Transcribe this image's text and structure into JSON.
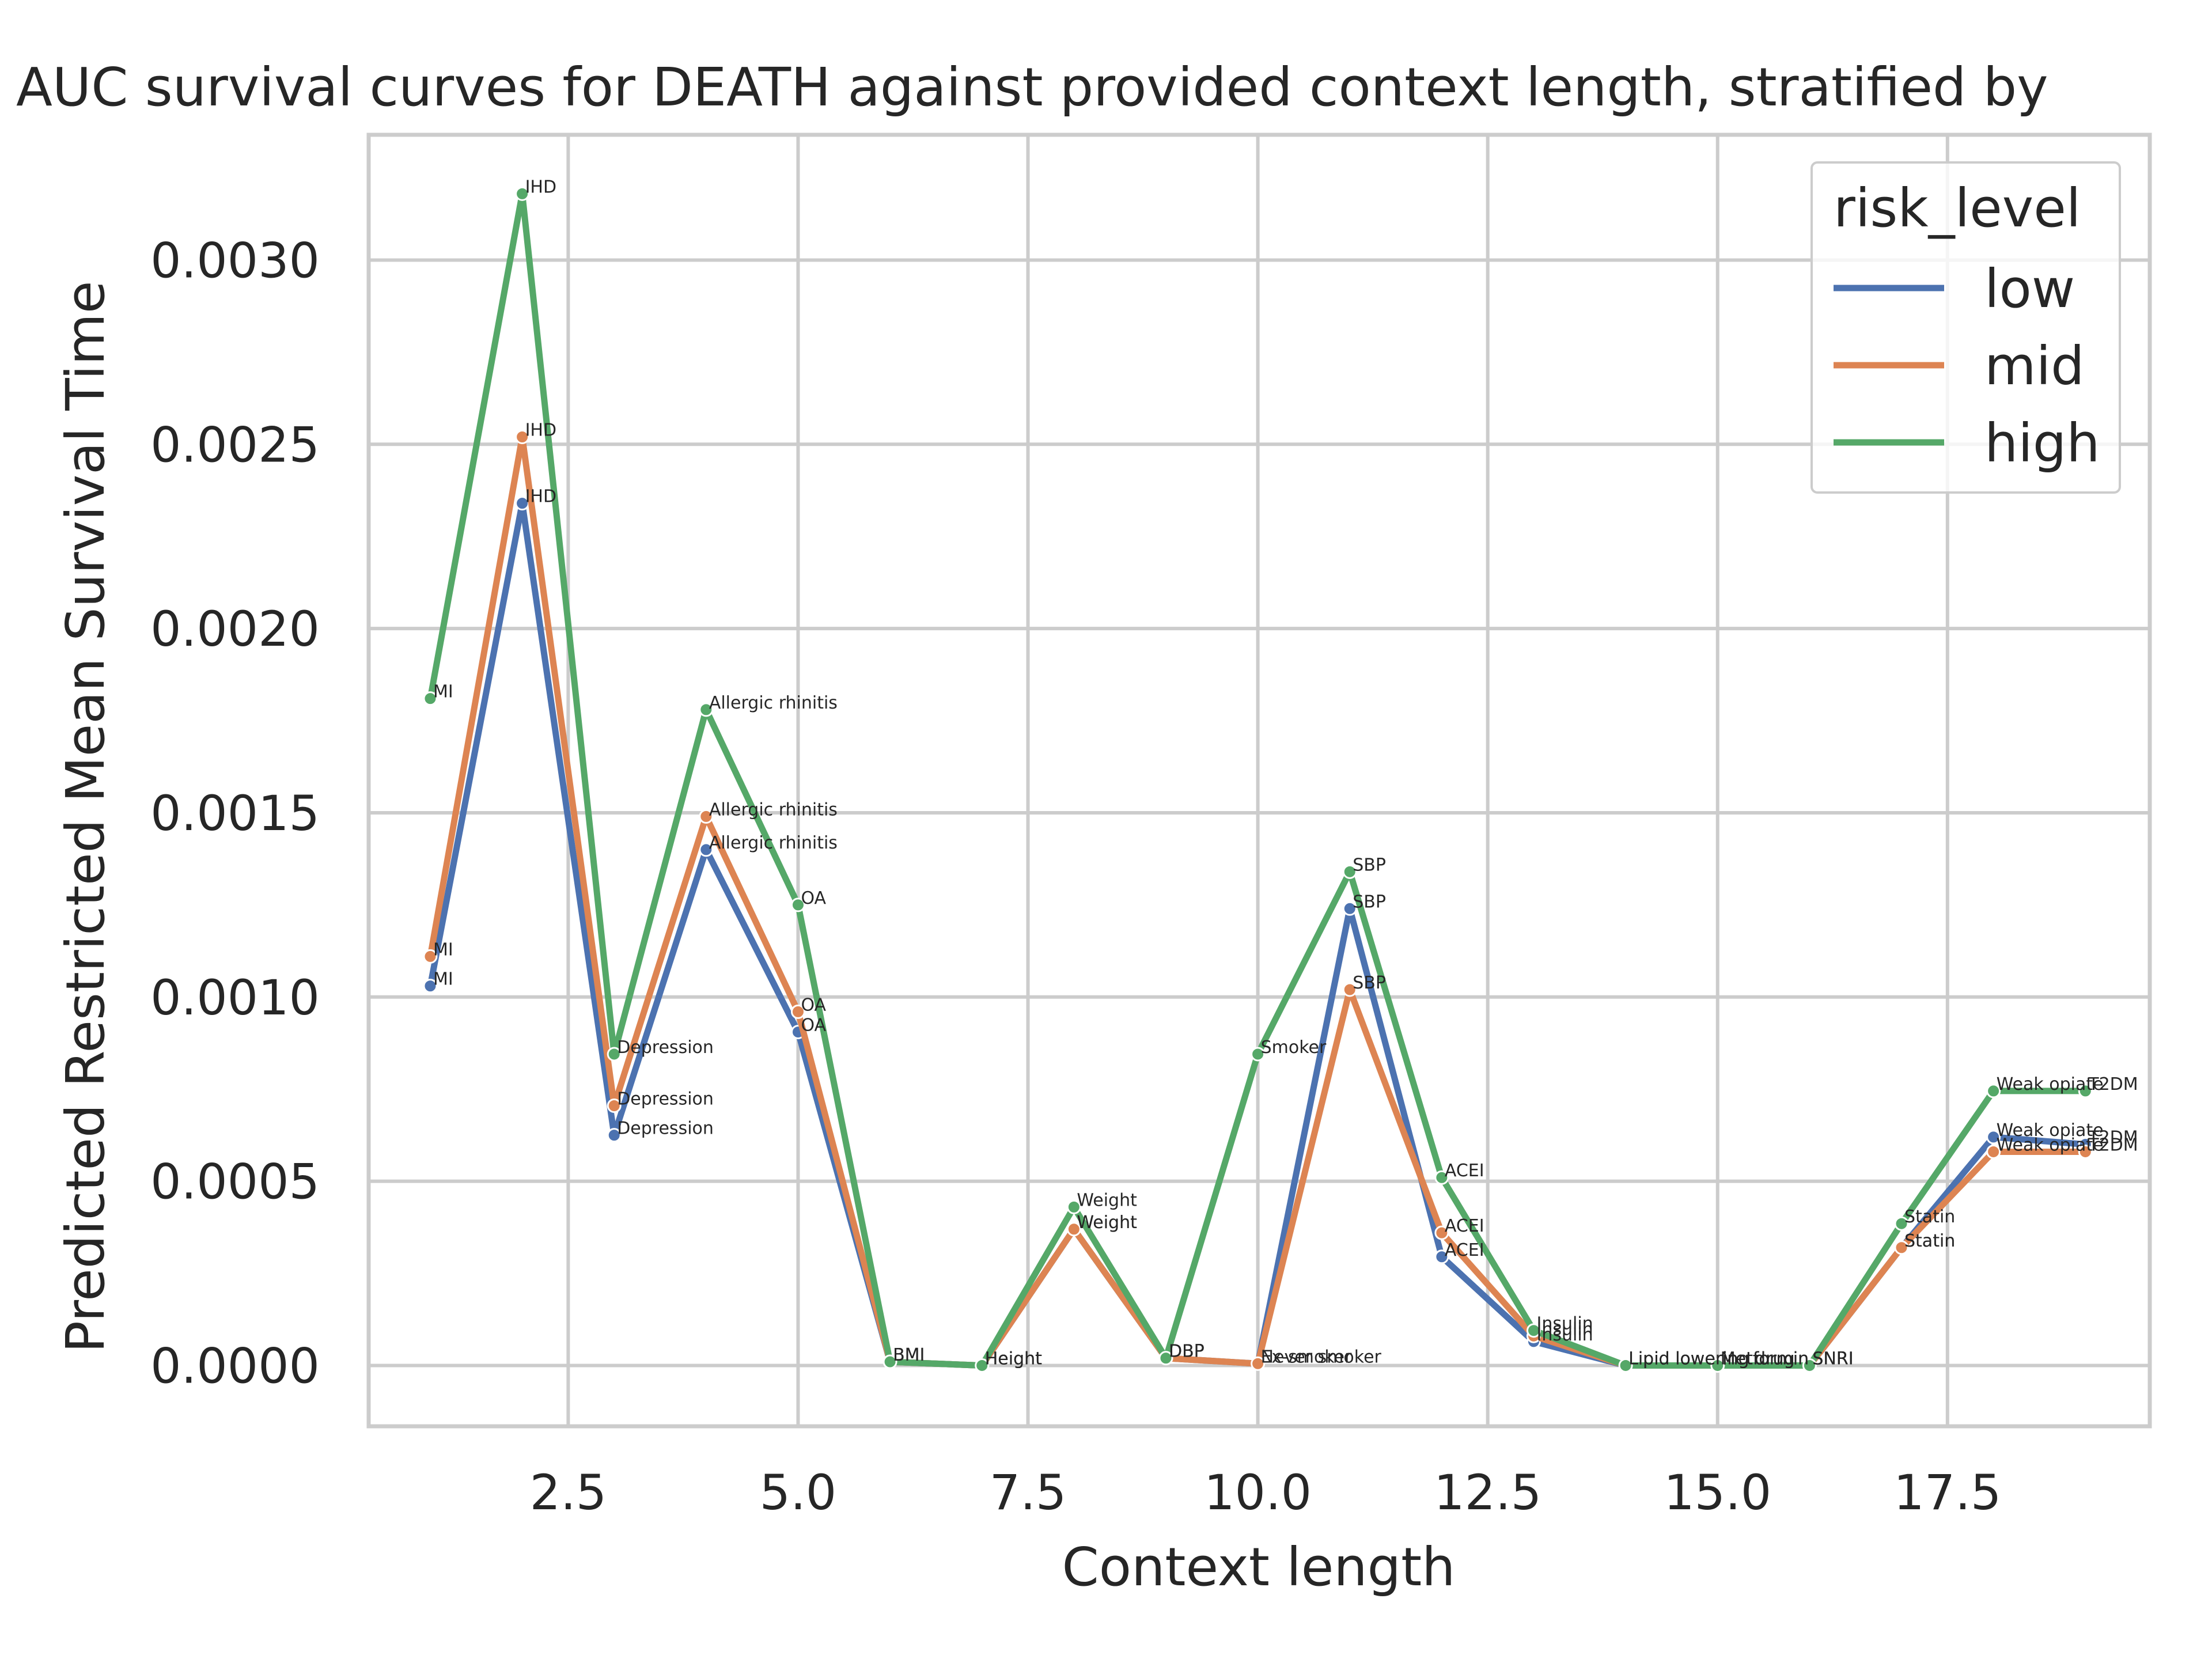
{
  "chart_data": {
    "type": "line",
    "title": "AUC survival curves for DEATH against provided context length, stratified by",
    "xlabel": "Context length",
    "ylabel": "Predicted Restricted Mean Survival Time",
    "xlim": [
      0.33,
      19.7
    ],
    "ylim": [
      -0.000165,
      0.00334
    ],
    "xticks": [
      2.5,
      5.0,
      7.5,
      10.0,
      12.5,
      15.0,
      17.5
    ],
    "xtick_labels": [
      "2.5",
      "5.0",
      "7.5",
      "10.0",
      "12.5",
      "15.0",
      "17.5"
    ],
    "yticks": [
      0.0,
      0.0005,
      0.001,
      0.0015,
      0.002,
      0.0025,
      0.003
    ],
    "ytick_labels": [
      "0.0000",
      "0.0005",
      "0.0010",
      "0.0015",
      "0.0020",
      "0.0025",
      "0.0030"
    ],
    "grid": true,
    "legend": {
      "title": "risk_level",
      "placement": "top-right"
    },
    "x": [
      1,
      2,
      3,
      4,
      5,
      6,
      7,
      8,
      9,
      10,
      11,
      12,
      13,
      14,
      15,
      16,
      17,
      18,
      19
    ],
    "series": [
      {
        "name": "low",
        "color": "#4c72b0",
        "values": [
          0.00103,
          0.00234,
          0.000625,
          0.0014,
          0.000905,
          1e-05,
          0.0,
          0.00037,
          2e-05,
          5e-06,
          0.00124,
          0.000295,
          6.5e-05,
          0.0,
          0.0,
          0.0,
          0.00032,
          0.00062,
          0.0006
        ],
        "labels": [
          "MI",
          "IHD",
          "Depression",
          "Allergic rhinitis",
          "OA",
          "BMI",
          "Height",
          "Weight",
          "DBP",
          "Never smoker",
          "SBP",
          "ACEI",
          "Insulin",
          "Lipid lowering drug",
          "Metformin",
          "SNRI",
          "Statin",
          "Weak opiate",
          "T2DM"
        ]
      },
      {
        "name": "mid",
        "color": "#dd8452",
        "values": [
          0.00111,
          0.00252,
          0.000705,
          0.00149,
          0.00096,
          1e-05,
          0.0,
          0.00037,
          2e-05,
          5e-06,
          0.00102,
          0.00036,
          8e-05,
          0.0,
          0.0,
          0.0,
          0.00032,
          0.00058,
          0.00058
        ],
        "labels": [
          "MI",
          "IHD",
          "Depression",
          "Allergic rhinitis",
          "OA",
          "BMI",
          "Height",
          "Weight",
          "DBP",
          "Ex-smoker",
          "SBP",
          "ACEI",
          "Insulin",
          "Lipid lowering drug",
          "Metformin",
          "SNRI",
          "Statin",
          "Weak opiate",
          "T2DM"
        ]
      },
      {
        "name": "high",
        "color": "#55a868",
        "values": [
          0.00181,
          0.00318,
          0.000845,
          0.00178,
          0.00125,
          1e-05,
          0.0,
          0.00043,
          2e-05,
          0.000845,
          0.00134,
          0.00051,
          9.5e-05,
          0.0,
          0.0,
          0.0,
          0.000385,
          0.000745,
          0.000745
        ],
        "labels": [
          "MI",
          "IHD",
          "Depression",
          "Allergic rhinitis",
          "OA",
          "BMI",
          "Height",
          "Weight",
          "DBP",
          "Smoker",
          "SBP",
          "ACEI",
          "Insulin",
          "Lipid lowering drug",
          "Metformin",
          "SNRI",
          "Statin",
          "Weak opiate",
          "T2DM"
        ]
      }
    ]
  }
}
